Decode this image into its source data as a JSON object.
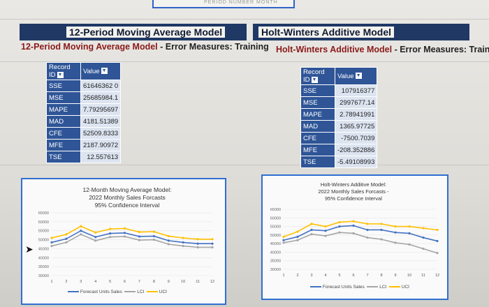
{
  "top": {
    "banner_fragment": "PERIOD NUMBER MONTH"
  },
  "left": {
    "header_title": "12-Period Moving Average Model",
    "subtitle_prefix": "12-Period Moving Average Model",
    "subtitle_rest": " - Error Measures: Training",
    "table": {
      "col_record": "Record ID",
      "col_value": "Value",
      "rows": [
        {
          "k": "SSE",
          "v": "61646362 0"
        },
        {
          "k": "MSE",
          "v": "25685984.1"
        },
        {
          "k": "MAPE",
          "v": "7.79295697"
        },
        {
          "k": "MAD",
          "v": "4181.51389"
        },
        {
          "k": "CFE",
          "v": "52509.8333"
        },
        {
          "k": "MFE",
          "v": "2187.90972"
        },
        {
          "k": "TSE",
          "v": "12.557613"
        }
      ]
    },
    "chart": {
      "title1": "12-Month Moving Average Model:",
      "title2": "2022 Monthly Sales Forcasts",
      "title3": "95% Confidence Interval",
      "legend_forecast": "Forecast Units Sales",
      "legend_lci": "LCI",
      "legend_uci": "UCI"
    }
  },
  "right": {
    "header_title": "Holt-Winters Additive Model",
    "subtitle_prefix": "Holt-Winters Additive Model",
    "subtitle_rest": " - Error Measures: Training",
    "table": {
      "col_record": "Record ID",
      "col_value": "Value",
      "rows": [
        {
          "k": "SSE",
          "v": "107916377"
        },
        {
          "k": "MSE",
          "v": "2997677.14"
        },
        {
          "k": "MAPE",
          "v": "2.78941991"
        },
        {
          "k": "MAD",
          "v": "1365.97725"
        },
        {
          "k": "CFE",
          "v": "-7500.7039"
        },
        {
          "k": "MFE",
          "v": "-208.352886"
        },
        {
          "k": "TSE",
          "v": "-5.49108993"
        }
      ]
    },
    "chart": {
      "title1": "Holt-Winters Additive Model:",
      "title2": "2022 Monthly Sales Forcasts -",
      "title3": "95% Confidence Interval",
      "legend_forecast": "Forecast Units Sales",
      "legend_lci": "LCI",
      "legend_uci": "UCI"
    }
  },
  "chart_data": [
    {
      "type": "line",
      "title": "12-Month Moving Average Model: 2022 Monthly Sales Forcasts 95% Confidence Interval",
      "x": [
        1,
        2,
        3,
        4,
        5,
        6,
        7,
        8,
        9,
        10,
        11,
        12
      ],
      "y_ticks": [
        "30000",
        "35000",
        "40000",
        "45000",
        "50000",
        "55000",
        "60000",
        "65000"
      ],
      "ylim": [
        30000,
        65000
      ],
      "series": [
        {
          "name": "Forecast Units Sales",
          "color": "#4472c4",
          "values": [
            48500,
            50500,
            55000,
            51500,
            53500,
            53800,
            51800,
            52000,
            49500,
            48500,
            47800,
            47800
          ]
        },
        {
          "name": "LCI",
          "color": "#a5a5a5",
          "values": [
            46500,
            48500,
            53000,
            49500,
            51500,
            51800,
            49800,
            50000,
            47500,
            46500,
            45800,
            45800
          ]
        },
        {
          "name": "UCI",
          "color": "#ffc000",
          "values": [
            51000,
            53000,
            57500,
            54000,
            56000,
            56300,
            54300,
            54500,
            52000,
            51000,
            50300,
            50300
          ]
        }
      ]
    },
    {
      "type": "line",
      "title": "Holt-Winters Additive Model: 2022 Monthly Sales Forcasts - 95% Confidence Interval",
      "x": [
        1,
        2,
        3,
        4,
        5,
        6,
        7,
        8,
        9,
        10,
        11,
        12
      ],
      "y_ticks": [
        "30000",
        "35000",
        "40000",
        "45000",
        "50000",
        "55000",
        "60000",
        "65000"
      ],
      "ylim": [
        30000,
        65000
      ],
      "series": [
        {
          "name": "Forecast Units Sales",
          "color": "#4472c4",
          "values": [
            47000,
            49000,
            53000,
            52500,
            55000,
            55500,
            53000,
            53000,
            51500,
            51000,
            48500,
            46500
          ]
        },
        {
          "name": "LCI",
          "color": "#a5a5a5",
          "values": [
            45500,
            47000,
            50500,
            49500,
            51500,
            51000,
            48500,
            47500,
            45500,
            44500,
            42000,
            39500
          ]
        },
        {
          "name": "UCI",
          "color": "#ffc000",
          "values": [
            49000,
            52000,
            56500,
            55000,
            57500,
            58000,
            56500,
            56500,
            55000,
            55000,
            54000,
            53000
          ]
        }
      ]
    }
  ]
}
